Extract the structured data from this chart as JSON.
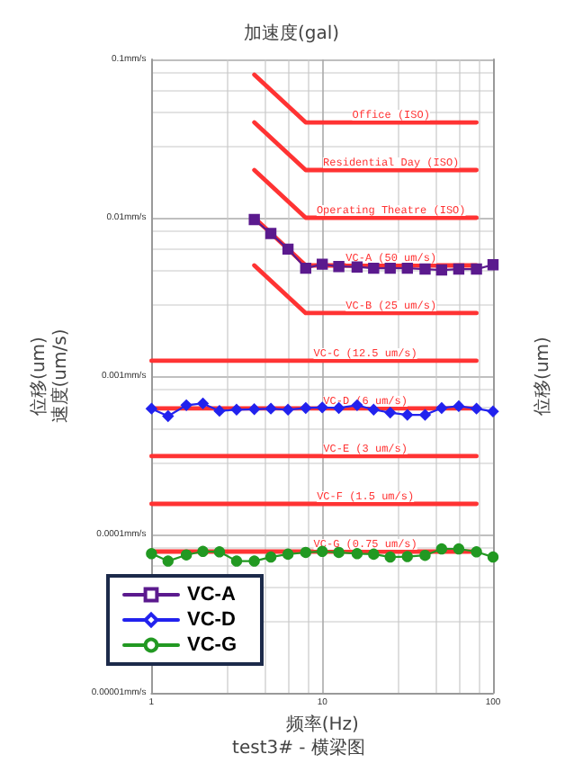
{
  "chart_data": {
    "type": "line",
    "title": "加速度(gal)",
    "xlabel": "频率(Hz)",
    "ylabel": "位移(um)\n速度(um/s)",
    "y2label": "位移(um)",
    "annotations": [
      "test3# - 横梁图"
    ],
    "log": "xy",
    "grid": true,
    "legend": "bottom left",
    "xlim": [
      1,
      100
    ],
    "xticks": [
      1,
      10,
      100
    ],
    "ylim": [
      1e-05,
      0.1
    ],
    "yticks": [
      {
        "value": 0.1,
        "label": "0.1mm/s"
      },
      {
        "value": 0.01,
        "label": "0.01mm/s"
      },
      {
        "value": 0.001,
        "label": "0.001mm/s"
      },
      {
        "value": 0.0001,
        "label": "0.0001mm/s"
      },
      {
        "value": 1e-05,
        "label": "0.00001mm/s"
      }
    ],
    "series": [
      {
        "name": "Office (ISO)",
        "color": "#ff3333",
        "marker": "none",
        "x": [
          4,
          8,
          80
        ],
        "values": [
          0.08,
          0.04,
          0.04
        ]
      },
      {
        "name": "Residential Day (ISO)",
        "color": "#ff3333",
        "marker": "none",
        "x": [
          4,
          8,
          80
        ],
        "values": [
          0.04,
          0.02,
          0.02
        ]
      },
      {
        "name": "Operating Theatre (ISO)",
        "color": "#ff3333",
        "marker": "none",
        "x": [
          4,
          8,
          80
        ],
        "values": [
          0.02,
          0.01,
          0.01
        ]
      },
      {
        "name": "VC-A (50 um/s)",
        "color": "#ff3333",
        "marker": "none",
        "x": [
          4,
          8,
          80
        ],
        "values": [
          0.01,
          0.005,
          0.005
        ]
      },
      {
        "name": "VC-B (25 um/s)",
        "color": "#ff3333",
        "marker": "none",
        "x": [
          4,
          8,
          80
        ],
        "values": [
          0.005,
          0.0025,
          0.0025
        ]
      },
      {
        "name": "VC-C (12.5 um/s)",
        "color": "#ff3333",
        "marker": "none",
        "x": [
          1,
          80
        ],
        "values": [
          0.00125,
          0.00125
        ]
      },
      {
        "name": "VC-D (6 um/s)",
        "color": "#ff3333",
        "marker": "none",
        "x": [
          1,
          80
        ],
        "values": [
          0.000625,
          0.000625
        ]
      },
      {
        "name": "VC-E (3 um/s)",
        "color": "#ff3333",
        "marker": "none",
        "x": [
          1,
          80
        ],
        "values": [
          0.0003125,
          0.0003125
        ]
      },
      {
        "name": "VC-F (1.5 um/s)",
        "color": "#ff3333",
        "marker": "none",
        "x": [
          1,
          80
        ],
        "values": [
          0.000156,
          0.000156
        ]
      },
      {
        "name": "VC-G (0.75 um/s)",
        "color": "#ff3333",
        "marker": "none",
        "x": [
          1,
          80
        ],
        "values": [
          7.8e-05,
          7.8e-05
        ]
      },
      {
        "name": "VC-A",
        "color": "#5b1a8e",
        "marker": "square",
        "x": [
          4,
          5,
          6.3,
          8,
          10,
          12.5,
          16,
          20,
          25,
          31.5,
          40,
          50,
          63,
          80,
          100
        ],
        "values": [
          0.00975,
          0.00796,
          0.00634,
          0.0048,
          0.00509,
          0.00492,
          0.00489,
          0.0048,
          0.0048,
          0.0048,
          0.00474,
          0.00468,
          0.00474,
          0.00474,
          0.00505
        ]
      },
      {
        "name": "VC-D",
        "color": "#2222ee",
        "marker": "diamond",
        "x": [
          1,
          1.25,
          1.6,
          2,
          2.5,
          3.15,
          4,
          5,
          6.3,
          8,
          10,
          12.5,
          16,
          20,
          25,
          31.5,
          40,
          50,
          63,
          80,
          100
        ],
        "values": [
          0.000623,
          0.000559,
          0.000655,
          0.000672,
          0.000603,
          0.000614,
          0.000618,
          0.000623,
          0.000614,
          0.000629,
          0.000634,
          0.000629,
          0.000655,
          0.000614,
          0.000588,
          0.000569,
          0.000569,
          0.000629,
          0.000646,
          0.000623,
          0.000598
        ]
      },
      {
        "name": "VC-G",
        "color": "#229922",
        "marker": "circle",
        "x": [
          1,
          1.25,
          1.6,
          2,
          2.5,
          3.15,
          4,
          5,
          6.3,
          8,
          10,
          12.5,
          16,
          20,
          25,
          31.5,
          40,
          50,
          63,
          80,
          100
        ],
        "values": [
          7.57e-05,
          6.79e-05,
          7.43e-05,
          7.82e-05,
          7.77e-05,
          6.79e-05,
          6.79e-05,
          7.2e-05,
          7.51e-05,
          7.7e-05,
          7.82e-05,
          7.7e-05,
          7.57e-05,
          7.51e-05,
          7.2e-05,
          7.25e-05,
          7.38e-05,
          8.11e-05,
          8.11e-05,
          7.77e-05,
          7.2e-05
        ]
      }
    ]
  }
}
